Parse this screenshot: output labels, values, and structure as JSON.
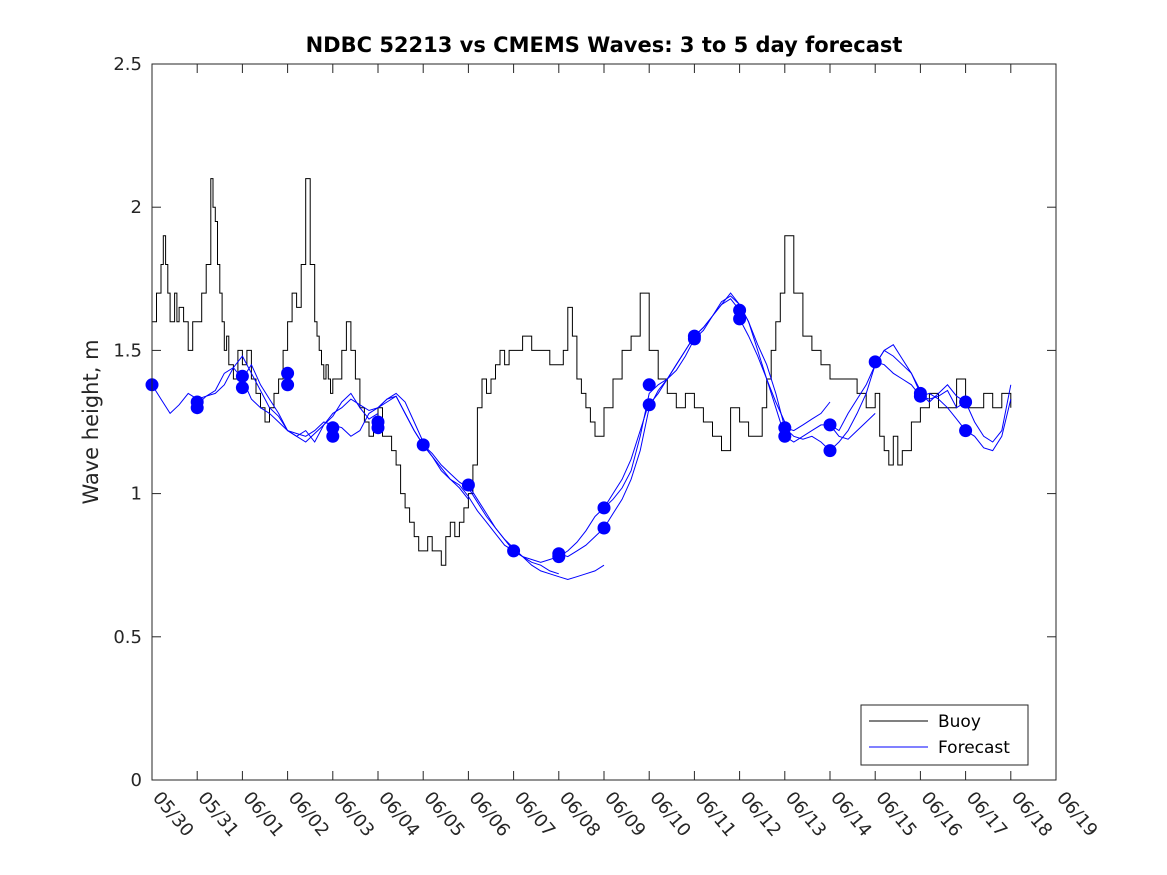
{
  "chart_data": {
    "type": "line",
    "title": "NDBC 52213 vs CMEMS Waves: 3 to 5 day forecast",
    "xlabel": "",
    "ylabel": "Wave height, m",
    "ylim": [
      0,
      2.5
    ],
    "yticks": [
      "0",
      "0.5",
      "1",
      "1.5",
      "2",
      "2.5"
    ],
    "xlim": [
      "05/30",
      "06/19"
    ],
    "xticks": [
      "05/30",
      "05/31",
      "06/01",
      "06/02",
      "06/03",
      "06/04",
      "06/05",
      "06/06",
      "06/07",
      "06/08",
      "06/09",
      "06/10",
      "06/11",
      "06/12",
      "06/13",
      "06/14",
      "06/15",
      "06/16",
      "06/17",
      "06/18",
      "06/19"
    ],
    "grid": false,
    "legend": {
      "position": "bottom-right",
      "entries": [
        "Buoy",
        "Forecast"
      ]
    },
    "colors": {
      "buoy": "#000000",
      "forecast": "#0000ff"
    },
    "buoy": {
      "name": "Buoy",
      "x": [
        0.0,
        0.1,
        0.2,
        0.25,
        0.3,
        0.35,
        0.4,
        0.5,
        0.55,
        0.6,
        0.7,
        0.8,
        0.9,
        1.0,
        1.1,
        1.2,
        1.3,
        1.35,
        1.4,
        1.45,
        1.5,
        1.55,
        1.6,
        1.65,
        1.7,
        1.75,
        1.8,
        1.9,
        2.0,
        2.1,
        2.2,
        2.3,
        2.4,
        2.5,
        2.6,
        2.7,
        2.8,
        2.9,
        3.0,
        3.1,
        3.2,
        3.3,
        3.4,
        3.5,
        3.6,
        3.65,
        3.7,
        3.75,
        3.8,
        3.85,
        3.9,
        3.95,
        4.0,
        4.1,
        4.2,
        4.3,
        4.4,
        4.5,
        4.6,
        4.7,
        4.8,
        4.9,
        5.0,
        5.1,
        5.2,
        5.3,
        5.4,
        5.5,
        5.6,
        5.7,
        5.8,
        5.9,
        6.0,
        6.1,
        6.2,
        6.3,
        6.4,
        6.5,
        6.6,
        6.7,
        6.8,
        6.9,
        7.0,
        7.1,
        7.2,
        7.3,
        7.4,
        7.5,
        7.6,
        7.7,
        7.8,
        7.9,
        8.0,
        8.2,
        8.4,
        8.6,
        8.8,
        9.0,
        9.1,
        9.2,
        9.3,
        9.4,
        9.5,
        9.6,
        9.7,
        9.8,
        9.9,
        10.0,
        10.2,
        10.4,
        10.6,
        10.8,
        11.0,
        11.2,
        11.4,
        11.6,
        11.8,
        12.0,
        12.2,
        12.4,
        12.6,
        12.8,
        13.0,
        13.2,
        13.4,
        13.5,
        13.6,
        13.7,
        13.8,
        13.9,
        14.0,
        14.2,
        14.4,
        14.6,
        14.8,
        15.0,
        15.2,
        15.4,
        15.6,
        15.8,
        16.0,
        16.1,
        16.2,
        16.3,
        16.4,
        16.5,
        16.6,
        16.8,
        17.0,
        17.2,
        17.4,
        17.6,
        17.8,
        18.0,
        18.2,
        18.4,
        18.6,
        18.8,
        19.0
      ],
      "y": [
        1.6,
        1.7,
        1.8,
        1.9,
        1.8,
        1.7,
        1.6,
        1.7,
        1.6,
        1.65,
        1.6,
        1.5,
        1.6,
        1.6,
        1.7,
        1.8,
        2.1,
        2.0,
        1.95,
        1.8,
        1.7,
        1.6,
        1.5,
        1.55,
        1.45,
        1.45,
        1.4,
        1.5,
        1.45,
        1.5,
        1.4,
        1.35,
        1.3,
        1.25,
        1.3,
        1.35,
        1.4,
        1.5,
        1.6,
        1.7,
        1.65,
        1.8,
        2.1,
        1.8,
        1.6,
        1.55,
        1.5,
        1.45,
        1.4,
        1.45,
        1.4,
        1.35,
        1.4,
        1.4,
        1.5,
        1.6,
        1.5,
        1.4,
        1.3,
        1.25,
        1.2,
        1.25,
        1.3,
        1.2,
        1.2,
        1.15,
        1.1,
        1.0,
        0.95,
        0.9,
        0.85,
        0.8,
        0.8,
        0.85,
        0.8,
        0.8,
        0.75,
        0.85,
        0.9,
        0.85,
        0.9,
        0.95,
        1.0,
        1.1,
        1.3,
        1.4,
        1.35,
        1.4,
        1.45,
        1.5,
        1.45,
        1.5,
        1.5,
        1.55,
        1.5,
        1.5,
        1.45,
        1.45,
        1.5,
        1.65,
        1.55,
        1.4,
        1.35,
        1.3,
        1.25,
        1.2,
        1.2,
        1.3,
        1.4,
        1.5,
        1.55,
        1.7,
        1.5,
        1.4,
        1.35,
        1.3,
        1.35,
        1.3,
        1.25,
        1.2,
        1.15,
        1.3,
        1.25,
        1.2,
        1.2,
        1.3,
        1.4,
        1.5,
        1.6,
        1.7,
        1.9,
        1.7,
        1.55,
        1.5,
        1.45,
        1.4,
        1.4,
        1.4,
        1.35,
        1.3,
        1.35,
        1.2,
        1.15,
        1.1,
        1.2,
        1.1,
        1.15,
        1.25,
        1.3,
        1.35,
        1.3,
        1.3,
        1.4,
        1.3,
        1.3,
        1.35,
        1.3,
        1.35,
        1.3
      ]
    },
    "forecast_runs": [
      {
        "name": "Forecast",
        "x": [
          0.0,
          0.2,
          0.4,
          0.6,
          0.8,
          1.0,
          1.2,
          1.4,
          1.6,
          1.8,
          2.0,
          2.2,
          2.4,
          2.6,
          2.8,
          3.0
        ],
        "y": [
          1.38,
          1.33,
          1.28,
          1.31,
          1.35,
          1.33,
          1.34,
          1.36,
          1.42,
          1.44,
          1.4,
          1.33,
          1.3,
          1.28,
          1.25,
          1.22
        ]
      },
      {
        "name": "Forecast",
        "x": [
          1.0,
          1.2,
          1.4,
          1.6,
          1.8,
          2.0,
          2.2,
          2.4,
          2.6,
          2.8,
          3.0,
          3.2,
          3.4,
          3.6,
          3.8,
          4.0
        ],
        "y": [
          1.31,
          1.34,
          1.35,
          1.38,
          1.44,
          1.48,
          1.42,
          1.36,
          1.3,
          1.27,
          1.22,
          1.21,
          1.2,
          1.22,
          1.25,
          1.24
        ]
      },
      {
        "name": "Forecast",
        "x": [
          2.0,
          2.2,
          2.4,
          2.6,
          2.8,
          3.0,
          3.2,
          3.4,
          3.6,
          3.8,
          4.0,
          4.2,
          4.4,
          4.6,
          4.8,
          5.0
        ],
        "y": [
          1.4,
          1.45,
          1.38,
          1.33,
          1.28,
          1.22,
          1.2,
          1.22,
          1.18,
          1.24,
          1.27,
          1.32,
          1.35,
          1.3,
          1.26,
          1.28
        ]
      },
      {
        "name": "Forecast",
        "x": [
          3.0,
          3.2,
          3.4,
          3.6,
          3.8,
          4.0,
          4.2,
          4.4,
          4.6,
          4.8,
          5.0,
          5.2,
          5.4,
          5.6,
          5.8,
          6.0
        ],
        "y": [
          1.22,
          1.2,
          1.18,
          1.21,
          1.24,
          1.28,
          1.3,
          1.33,
          1.31,
          1.29,
          1.3,
          1.33,
          1.35,
          1.32,
          1.25,
          1.18
        ]
      },
      {
        "name": "Forecast",
        "x": [
          4.0,
          4.2,
          4.4,
          4.6,
          4.8,
          5.0,
          5.2,
          5.4,
          5.6,
          5.8,
          6.0,
          6.2,
          6.4,
          6.6,
          6.8,
          7.0
        ],
        "y": [
          1.24,
          1.23,
          1.2,
          1.22,
          1.28,
          1.3,
          1.32,
          1.34,
          1.28,
          1.22,
          1.17,
          1.13,
          1.09,
          1.05,
          1.02,
          0.98
        ]
      },
      {
        "name": "Forecast",
        "x": [
          5.0,
          5.2,
          5.4,
          5.6,
          5.8,
          6.0,
          6.2,
          6.4,
          6.6,
          6.8,
          7.0,
          7.2,
          7.4,
          7.6,
          7.8,
          8.0
        ],
        "y": [
          1.3,
          1.33,
          1.34,
          1.28,
          1.22,
          1.17,
          1.13,
          1.08,
          1.05,
          1.03,
          0.99,
          0.94,
          0.9,
          0.86,
          0.82,
          0.8
        ]
      },
      {
        "name": "Forecast",
        "x": [
          6.0,
          6.2,
          6.4,
          6.6,
          6.8,
          7.0,
          7.2,
          7.4,
          7.6,
          7.8,
          8.0,
          8.2,
          8.4,
          8.6,
          8.8,
          9.0
        ],
        "y": [
          1.17,
          1.14,
          1.1,
          1.07,
          1.04,
          1.02,
          0.97,
          0.92,
          0.88,
          0.84,
          0.8,
          0.78,
          0.76,
          0.75,
          0.73,
          0.72
        ]
      },
      {
        "name": "Forecast",
        "x": [
          7.0,
          7.2,
          7.4,
          7.6,
          7.8,
          8.0,
          8.2,
          8.4,
          8.6,
          8.8,
          9.0,
          9.2,
          9.4,
          9.6,
          9.8,
          10.0
        ],
        "y": [
          1.03,
          0.98,
          0.93,
          0.88,
          0.84,
          0.81,
          0.78,
          0.75,
          0.73,
          0.72,
          0.71,
          0.7,
          0.71,
          0.72,
          0.73,
          0.75
        ]
      },
      {
        "name": "Forecast",
        "x": [
          8.0,
          8.2,
          8.4,
          8.6,
          8.8,
          9.0,
          9.2,
          9.4,
          9.6,
          9.8,
          10.0,
          10.2,
          10.4,
          10.6,
          10.8,
          11.0
        ],
        "y": [
          0.8,
          0.78,
          0.77,
          0.76,
          0.77,
          0.78,
          0.8,
          0.83,
          0.87,
          0.92,
          0.95,
          1.0,
          1.05,
          1.12,
          1.22,
          1.32
        ]
      },
      {
        "name": "Forecast",
        "x": [
          9.0,
          9.2,
          9.4,
          9.6,
          9.8,
          10.0,
          10.2,
          10.4,
          10.6,
          10.8,
          11.0,
          11.2,
          11.4,
          11.6,
          11.8,
          12.0
        ],
        "y": [
          0.79,
          0.78,
          0.8,
          0.82,
          0.85,
          0.88,
          0.93,
          0.98,
          1.05,
          1.15,
          1.3,
          1.36,
          1.4,
          1.45,
          1.5,
          1.55
        ]
      },
      {
        "name": "Forecast",
        "x": [
          10.0,
          10.2,
          10.4,
          10.6,
          10.8,
          11.0,
          11.2,
          11.4,
          11.6,
          11.8,
          12.0,
          12.2,
          12.4,
          12.6,
          12.8,
          13.0
        ],
        "y": [
          0.95,
          0.98,
          1.02,
          1.08,
          1.2,
          1.35,
          1.38,
          1.4,
          1.45,
          1.5,
          1.55,
          1.58,
          1.62,
          1.66,
          1.68,
          1.64
        ]
      },
      {
        "name": "Forecast",
        "x": [
          11.0,
          11.2,
          11.4,
          11.6,
          11.8,
          12.0,
          12.2,
          12.4,
          12.6,
          12.8,
          13.0,
          13.2,
          13.4,
          13.6,
          13.8,
          14.0
        ],
        "y": [
          1.31,
          1.35,
          1.4,
          1.43,
          1.48,
          1.54,
          1.57,
          1.62,
          1.67,
          1.69,
          1.66,
          1.6,
          1.5,
          1.4,
          1.32,
          1.25
        ]
      },
      {
        "name": "Forecast",
        "x": [
          12.0,
          12.2,
          12.4,
          12.6,
          12.8,
          13.0,
          13.2,
          13.4,
          13.6,
          13.8,
          14.0,
          14.2,
          14.4,
          14.6,
          14.8,
          15.0
        ],
        "y": [
          1.55,
          1.58,
          1.62,
          1.66,
          1.7,
          1.66,
          1.6,
          1.52,
          1.45,
          1.35,
          1.23,
          1.22,
          1.24,
          1.26,
          1.28,
          1.32
        ]
      },
      {
        "name": "Forecast",
        "x": [
          13.0,
          13.2,
          13.4,
          13.6,
          13.8,
          14.0,
          14.2,
          14.4,
          14.6,
          14.8,
          15.0,
          15.2,
          15.4,
          15.6,
          15.8,
          16.0
        ],
        "y": [
          1.61,
          1.55,
          1.48,
          1.4,
          1.3,
          1.2,
          1.18,
          1.2,
          1.22,
          1.24,
          1.24,
          1.2,
          1.19,
          1.22,
          1.25,
          1.28
        ]
      },
      {
        "name": "Forecast",
        "x": [
          14.0,
          14.2,
          14.4,
          14.6,
          14.8,
          15.0,
          15.2,
          15.4,
          15.6,
          15.8,
          16.0,
          16.2,
          16.4,
          16.6,
          16.8,
          17.0
        ],
        "y": [
          1.23,
          1.2,
          1.19,
          1.2,
          1.18,
          1.15,
          1.18,
          1.22,
          1.28,
          1.35,
          1.45,
          1.5,
          1.48,
          1.45,
          1.42,
          1.36
        ]
      },
      {
        "name": "Forecast",
        "x": [
          15.0,
          15.2,
          15.4,
          15.6,
          15.8,
          16.0,
          16.2,
          16.4,
          16.6,
          16.8,
          17.0,
          17.2,
          17.4,
          17.6,
          17.8,
          18.0
        ],
        "y": [
          1.24,
          1.22,
          1.28,
          1.33,
          1.38,
          1.45,
          1.5,
          1.52,
          1.47,
          1.42,
          1.35,
          1.32,
          1.35,
          1.38,
          1.34,
          1.32
        ]
      },
      {
        "name": "Forecast",
        "x": [
          16.0,
          16.2,
          16.4,
          16.6,
          16.8,
          17.0,
          17.2,
          17.4,
          17.6,
          17.8,
          18.0,
          18.2,
          18.4,
          18.6,
          18.8,
          19.0
        ],
        "y": [
          1.46,
          1.45,
          1.42,
          1.4,
          1.38,
          1.34,
          1.33,
          1.34,
          1.36,
          1.3,
          1.32,
          1.25,
          1.2,
          1.18,
          1.22,
          1.38
        ]
      },
      {
        "name": "Forecast",
        "x": [
          17.0,
          17.2,
          17.4,
          17.6,
          17.8,
          18.0,
          18.2,
          18.4,
          18.6,
          18.8,
          19.0
        ],
        "y": [
          1.34,
          1.35,
          1.33,
          1.3,
          1.26,
          1.22,
          1.2,
          1.16,
          1.15,
          1.2,
          1.33
        ]
      }
    ],
    "forecast_markers": {
      "x": [
        0.0,
        1.0,
        1.0,
        2.0,
        2.0,
        3.0,
        3.0,
        4.0,
        4.0,
        5.0,
        5.0,
        6.0,
        7.0,
        8.0,
        9.0,
        9.0,
        10.0,
        10.0,
        11.0,
        11.0,
        12.0,
        12.0,
        13.0,
        13.0,
        14.0,
        14.0,
        15.0,
        15.0,
        16.0,
        17.0,
        17.0,
        18.0,
        18.0
      ],
      "y": [
        1.38,
        1.32,
        1.3,
        1.41,
        1.37,
        1.42,
        1.38,
        1.23,
        1.2,
        1.25,
        1.23,
        1.17,
        1.03,
        0.8,
        0.79,
        0.78,
        0.95,
        0.88,
        1.38,
        1.31,
        1.55,
        1.54,
        1.64,
        1.61,
        1.23,
        1.2,
        1.24,
        1.15,
        1.46,
        1.35,
        1.34,
        1.32,
        1.22
      ]
    }
  }
}
